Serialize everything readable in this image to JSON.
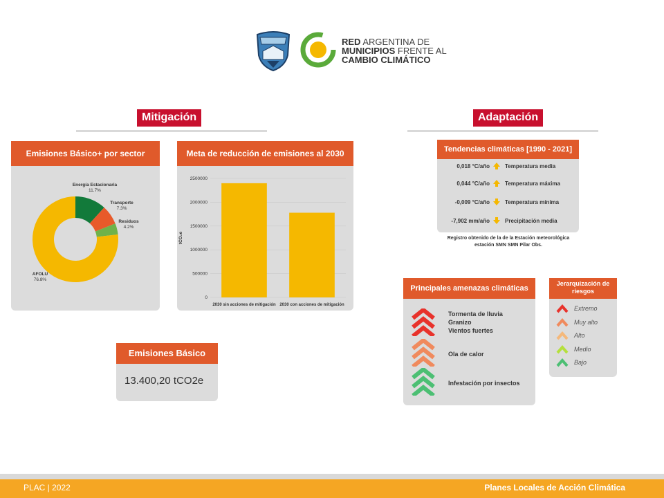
{
  "header": {
    "shield_label": "ESQUEL",
    "org_line1_bold": "RED",
    "org_line1_rest": " ARGENTINA DE",
    "org_line2_bold": "MUNICIPIOS",
    "org_line2_rest": " FRENTE AL",
    "org_line3_bold": "CAMBIO CLIMÁTICO"
  },
  "mitigation": {
    "title": "Mitigación",
    "sector_card": {
      "title": "Emisiones Básico+ por sector"
    },
    "reduction_card": {
      "title": "Meta de reducción de emisiones al 2030"
    },
    "basic_card": {
      "title": "Emisiones Básico",
      "value": "13.400,20 tCO2e"
    }
  },
  "adaptation": {
    "title": "Adaptación",
    "trends": {
      "title": "Tendencias climáticas [1990 - 2021]",
      "rows": [
        {
          "value": "0,018 °C/año",
          "label": "Temperatura media",
          "dir": "up"
        },
        {
          "value": "0,044 °C/año",
          "label": "Temperatura máxima",
          "dir": "up"
        },
        {
          "value": "-0,009 °C/año",
          "label": "Temperatura mínima",
          "dir": "down"
        },
        {
          "value": "-7,902 mm/año",
          "label": "Precipitación media",
          "dir": "down"
        }
      ],
      "note_line1": "Registro obtenido de la de la Estación meteorológica",
      "note_line2": "estación SMN SMN Pilar Obs."
    },
    "threats": {
      "title": "Principales amenazas climáticas",
      "items": [
        {
          "lines": [
            "Tormenta de lluvia",
            "Granizo",
            "Vientos fuertes"
          ],
          "level": "Extremo"
        },
        {
          "lines": [
            "Ola de calor"
          ],
          "level": "Muy alto"
        },
        {
          "lines": [
            "Infestación por insectos"
          ],
          "level": "Bajo"
        }
      ]
    },
    "risks": {
      "title_line1": "Jerarquización de",
      "title_line2": "riesgos",
      "levels": [
        {
          "label": "Extremo",
          "color": "#e8322b"
        },
        {
          "label": "Muy alto",
          "color": "#f08a5d"
        },
        {
          "label": "Alto",
          "color": "#f5b87a"
        },
        {
          "label": "Medio",
          "color": "#b5e03c"
        },
        {
          "label": "Bajo",
          "color": "#4cbf73"
        }
      ]
    }
  },
  "chart_data": [
    {
      "type": "pie",
      "title": "Emisiones Básico+ por sector",
      "categories": [
        "Energía Estacionaria",
        "Transporte",
        "Residuos",
        "AFOLU"
      ],
      "values": [
        11.7,
        7.3,
        4.2,
        76.8
      ],
      "value_labels": [
        "11.7%",
        "7.3%",
        "4.2%",
        "76.8%"
      ],
      "colors": [
        "#127a3a",
        "#e85a2a",
        "#6fb24a",
        "#f5b800"
      ]
    },
    {
      "type": "bar",
      "title": "Meta de reducción de emisiones al 2030",
      "categories": [
        "2030 sin acciones de mitigación",
        "2030 con acciones de mitigación"
      ],
      "values": [
        2400000,
        1780000
      ],
      "ylabel": "tCO₂e",
      "ylim": [
        0,
        2500000
      ],
      "yticks": [
        "0",
        "500000",
        "1000000",
        "1500000",
        "2000000",
        "2500000"
      ],
      "color": "#f5b800"
    }
  ],
  "footer": {
    "left": "PLAC | 2022",
    "right": "Planes Locales de Acción Climática"
  }
}
